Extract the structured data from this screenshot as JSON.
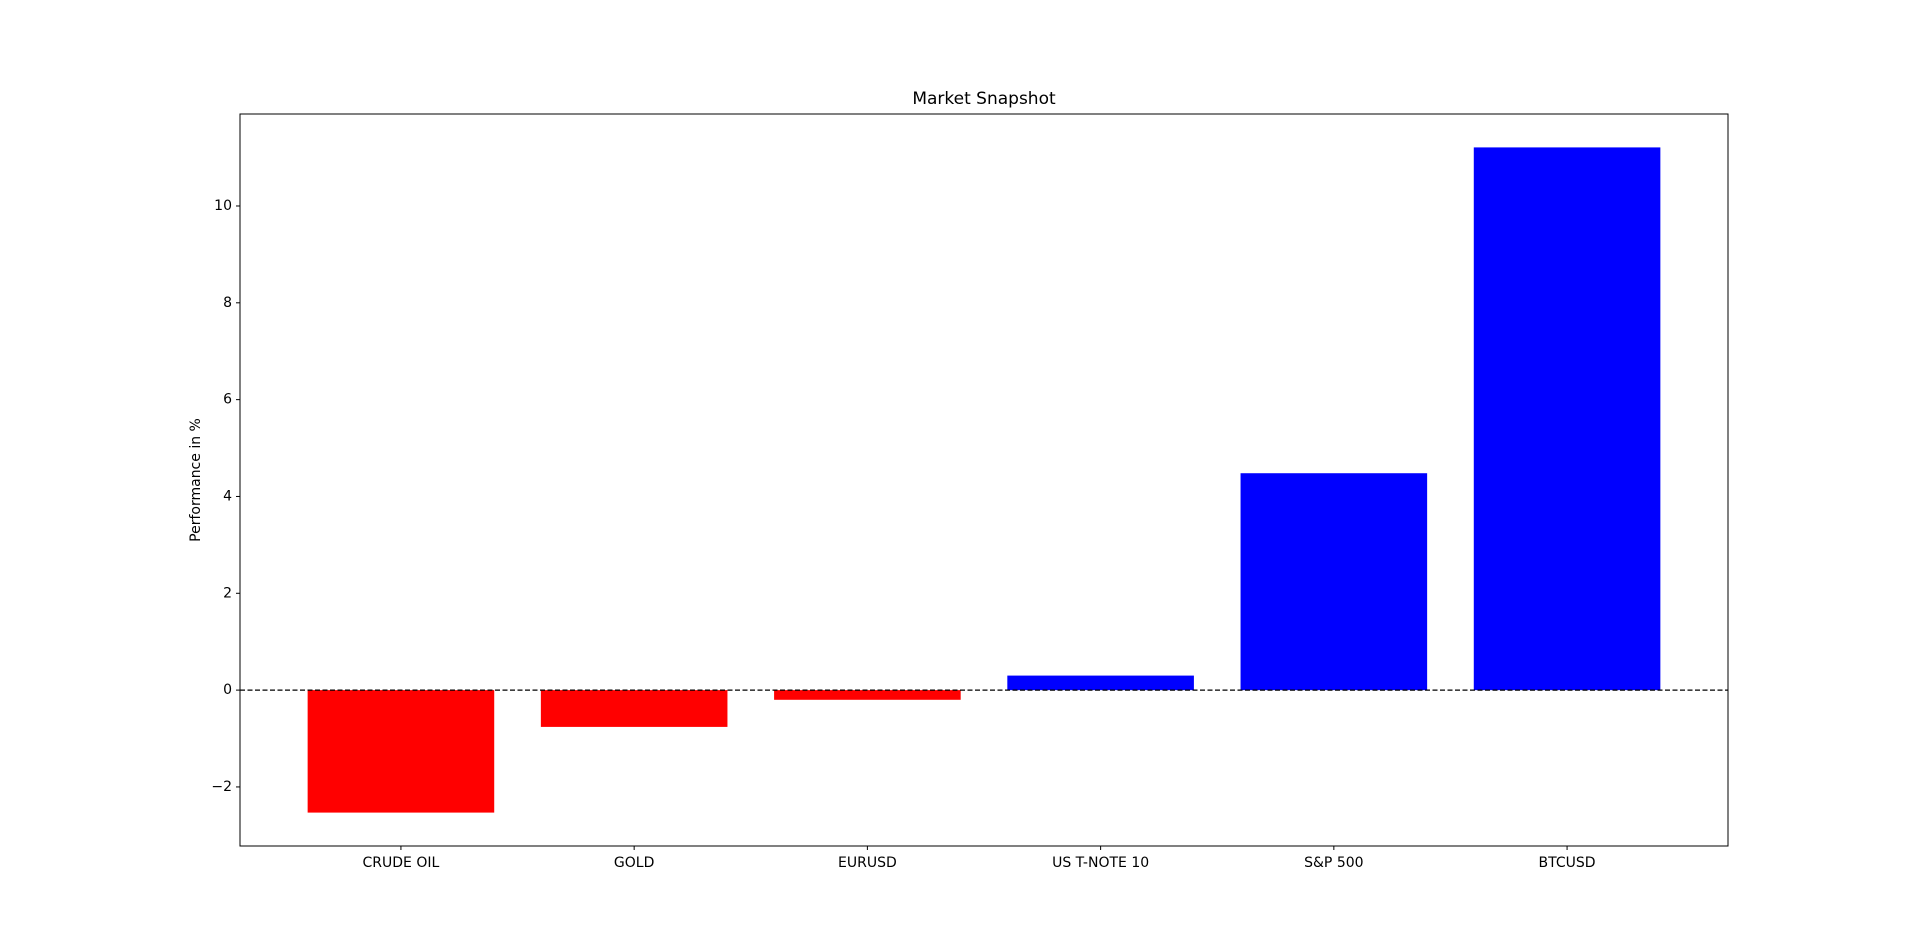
{
  "chart_data": {
    "type": "bar",
    "title": "Market Snapshot",
    "y_label": "Performance in %",
    "categories": [
      "CRUDE OIL",
      "GOLD",
      "EURUSD",
      "US T-NOTE 10",
      "S&P 500",
      "BTCUSD"
    ],
    "values": [
      -2.53,
      -0.76,
      -0.2,
      0.3,
      4.48,
      11.21
    ],
    "colors": [
      "#ff0000",
      "#ff0000",
      "#ff0000",
      "#0000ff",
      "#0000ff",
      "#0000ff"
    ],
    "ylim": [
      -3.22,
      11.9
    ],
    "yticks": [
      {
        "value": -2,
        "label": "−2"
      },
      0,
      2,
      4,
      6,
      8,
      10
    ],
    "zero_line": {
      "value": 0,
      "color": "#000000",
      "style": "dashed"
    }
  }
}
